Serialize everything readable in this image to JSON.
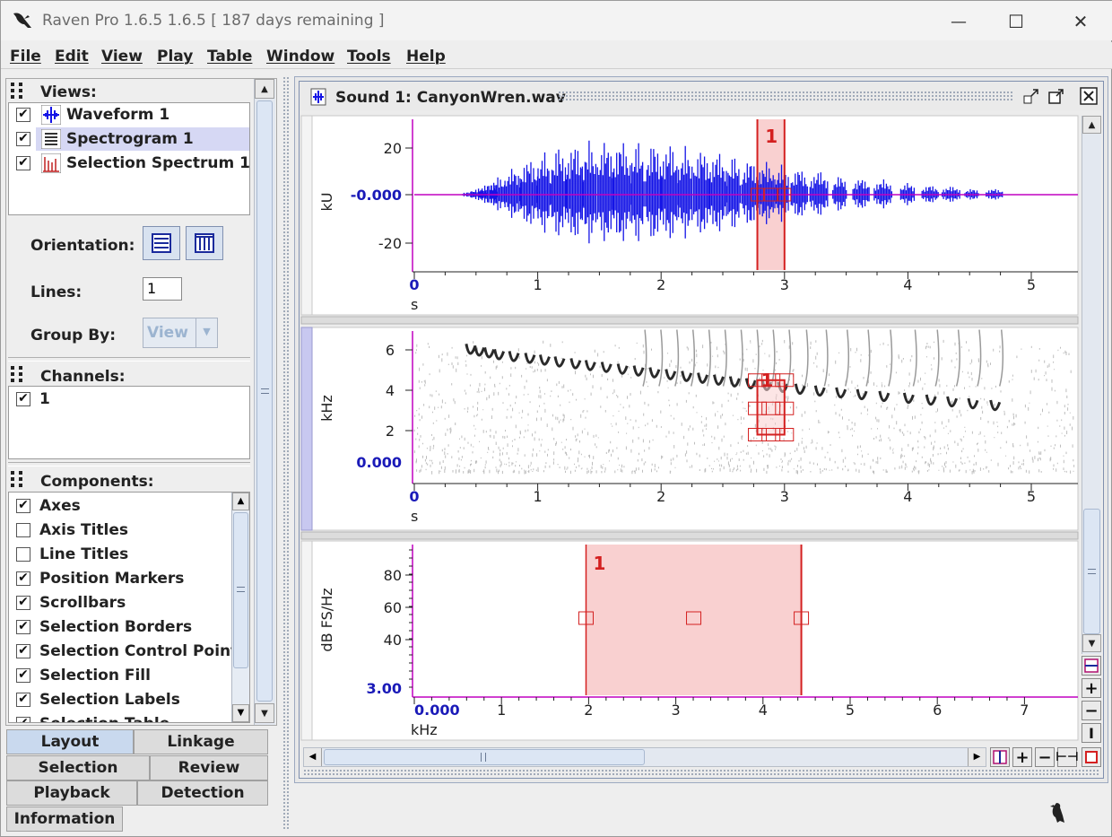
{
  "window": {
    "title": "Raven Pro 1.6.5 1.6.5  [ 187 days remaining ]",
    "minimize": "—",
    "maximize": "☐",
    "close": "✕"
  },
  "menu": [
    "File",
    "Edit",
    "View",
    "Play",
    "Table",
    "Window",
    "Tools",
    "Help"
  ],
  "views": {
    "title": "Views:",
    "items": [
      {
        "label": "Waveform 1",
        "checked": true,
        "icon": "waveform-icon"
      },
      {
        "label": "Spectrogram 1",
        "checked": true,
        "icon": "spectrogram-icon",
        "selected": true
      },
      {
        "label": "Selection Spectrum 1",
        "checked": true,
        "icon": "spectrum-icon"
      }
    ],
    "orientation_label": "Orientation:",
    "lines_label": "Lines:",
    "lines_value": "1",
    "groupby_label": "Group By:",
    "groupby_value": "View"
  },
  "channels": {
    "title": "Channels:",
    "items": [
      {
        "label": "1",
        "checked": true
      }
    ]
  },
  "components": {
    "title": "Components:",
    "items": [
      {
        "label": "Axes",
        "checked": true
      },
      {
        "label": "Axis Titles",
        "checked": false
      },
      {
        "label": "Line Titles",
        "checked": false
      },
      {
        "label": "Position Markers",
        "checked": true
      },
      {
        "label": "Scrollbars",
        "checked": true
      },
      {
        "label": "Selection Borders",
        "checked": true
      },
      {
        "label": "Selection Control Points",
        "checked": true
      },
      {
        "label": "Selection Fill",
        "checked": true
      },
      {
        "label": "Selection Labels",
        "checked": true
      },
      {
        "label": "Selection Table",
        "checked": true
      }
    ]
  },
  "tabs": {
    "row1": [
      "Layout",
      "Linkage"
    ],
    "row2": [
      "Selection",
      "Review"
    ],
    "row3": [
      "Playback",
      "Detection"
    ],
    "row4": [
      "Information"
    ],
    "active": "Layout"
  },
  "document": {
    "title": "Sound 1: CanyonWren.wav",
    "waveform": {
      "ylabel": "kU",
      "yticks": [
        "20",
        "-0.000",
        "-20"
      ],
      "xticks": [
        "0",
        "1",
        "2",
        "3",
        "4",
        "5"
      ],
      "xunit": "s",
      "selection_label": "1"
    },
    "spectrogram": {
      "ylabel": "kHz",
      "yticks": [
        "6",
        "4",
        "2",
        "0.000"
      ],
      "xticks": [
        "0",
        "1",
        "2",
        "3",
        "4",
        "5"
      ],
      "xunit": "s",
      "selection_label": "1"
    },
    "spectrum": {
      "ylabel": "dB FS/Hz",
      "yticks": [
        "80",
        "60",
        "40",
        "3.00"
      ],
      "xticks": [
        "0.000",
        "1",
        "2",
        "3",
        "4",
        "5",
        "6",
        "7"
      ],
      "xunit": "kHz",
      "selection_label": "1"
    }
  },
  "colors": {
    "waveform": "#1414e6",
    "selection": "#d42020",
    "selection_fill": "#f9d0d0",
    "axis": "#c000c0",
    "zero_label": "#1a1ab8"
  }
}
